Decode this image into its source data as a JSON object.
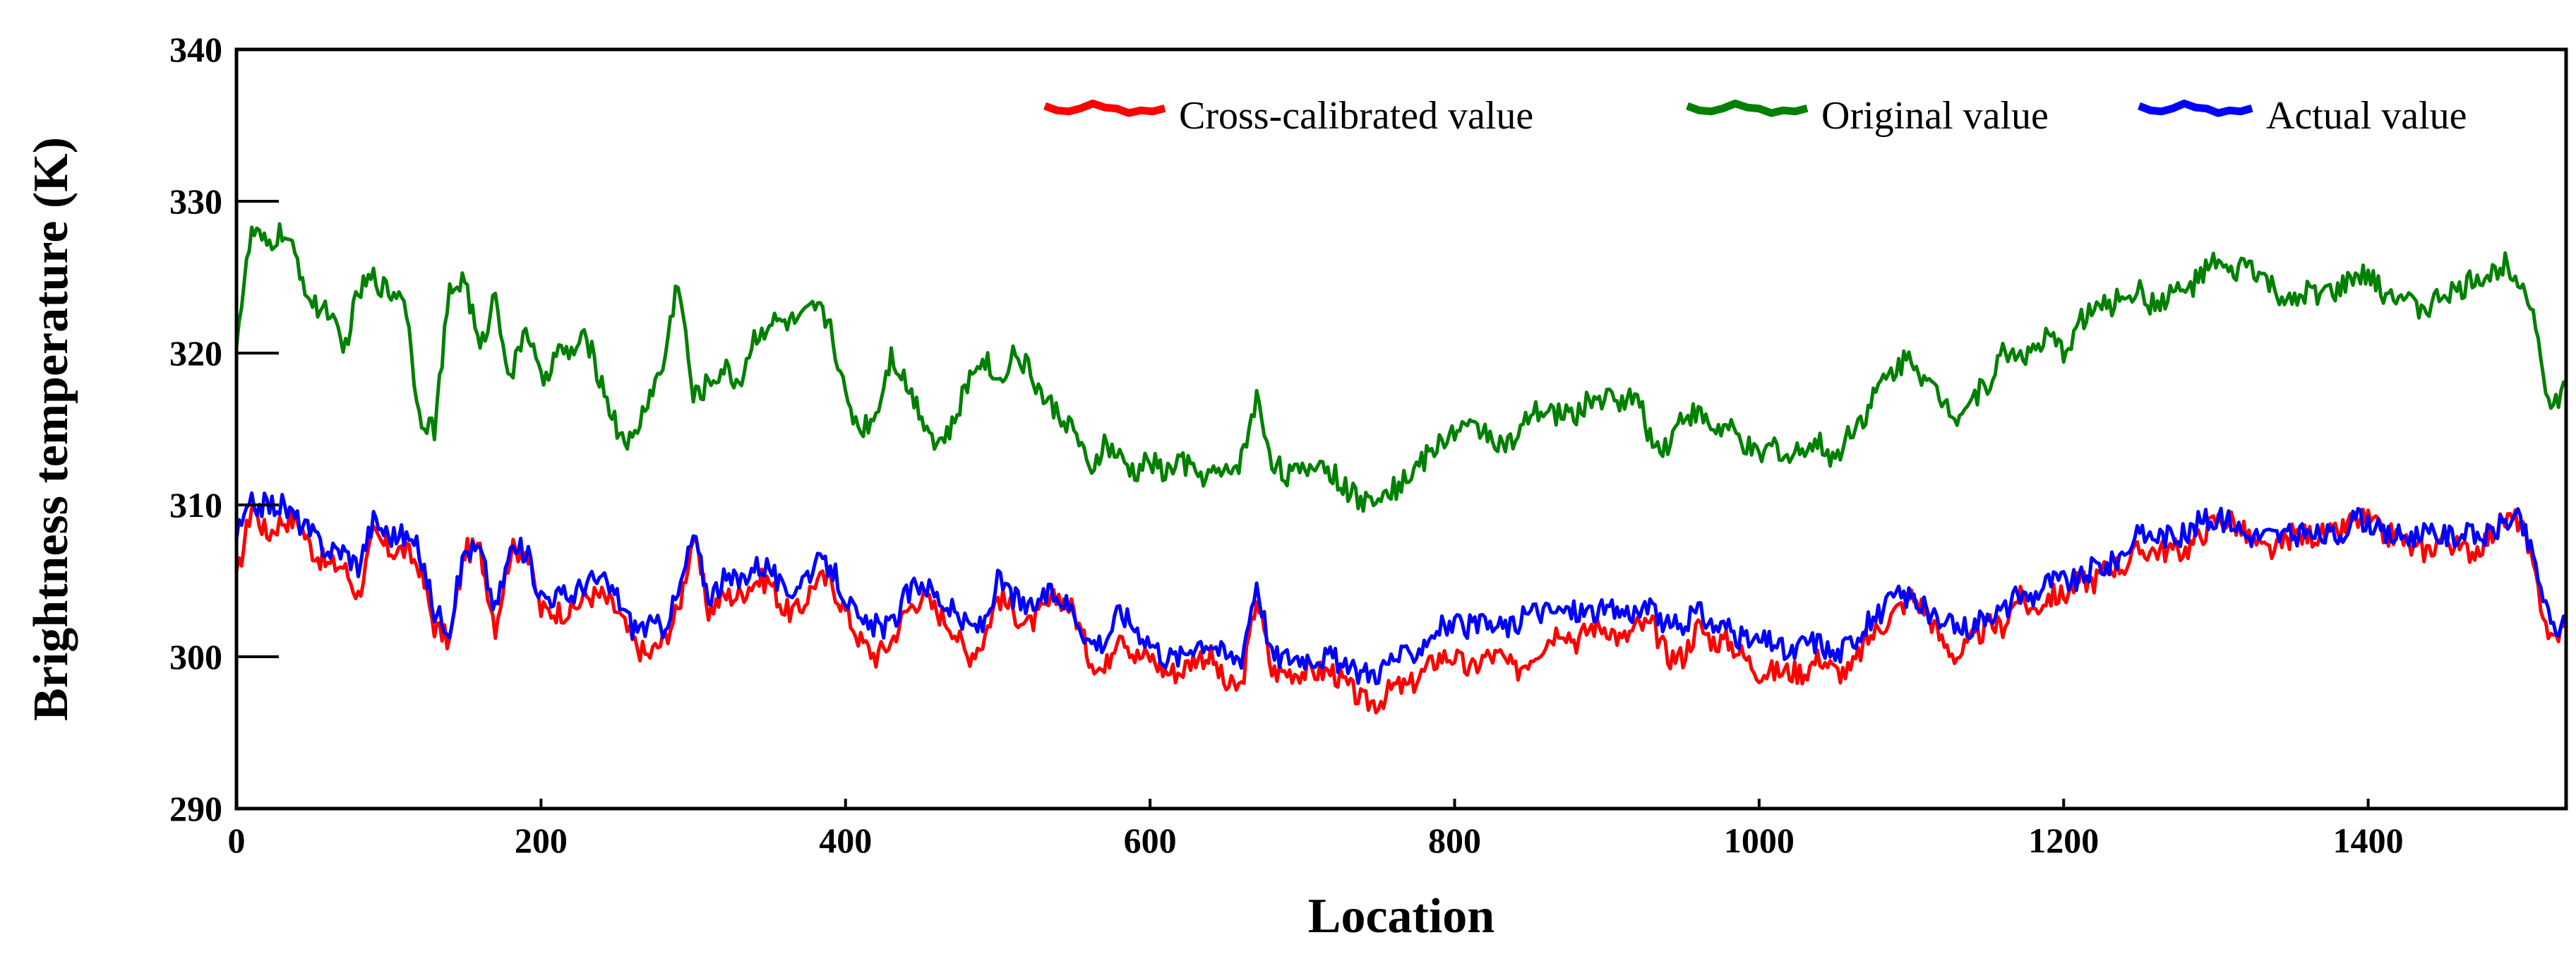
{
  "chart_data": {
    "type": "line",
    "xlabel": "Location",
    "ylabel": "Brightness temperature (K)",
    "xlim": [
      0,
      1530
    ],
    "ylim": [
      290,
      340
    ],
    "xticks": [
      0,
      200,
      400,
      600,
      800,
      1000,
      1200,
      1400
    ],
    "yticks": [
      290,
      300,
      310,
      320,
      330,
      340
    ],
    "grid": false,
    "legend": "top-right",
    "series": [
      {
        "name": "Cross-calibrated value",
        "color": "#ff0000",
        "x": [
          0,
          10,
          20,
          30,
          40,
          50,
          60,
          70,
          80,
          90,
          100,
          110,
          120,
          130,
          140,
          150,
          160,
          170,
          180,
          190,
          200,
          210,
          220,
          230,
          240,
          250,
          260,
          270,
          280,
          290,
          300,
          310,
          320,
          330,
          340,
          350,
          360,
          370,
          380,
          390,
          400,
          410,
          420,
          430,
          440,
          450,
          460,
          470,
          480,
          490,
          500,
          510,
          520,
          530,
          540,
          550,
          560,
          570,
          580,
          590,
          600,
          610,
          620,
          630,
          640,
          650,
          660,
          670,
          680,
          690,
          700,
          710,
          720,
          730,
          740,
          750,
          760,
          770,
          780,
          790,
          800,
          810,
          820,
          830,
          840,
          850,
          860,
          870,
          880,
          890,
          900,
          910,
          920,
          930,
          940,
          950,
          960,
          970,
          980,
          990,
          1000,
          1010,
          1020,
          1030,
          1040,
          1050,
          1060,
          1070,
          1080,
          1090,
          1100,
          1110,
          1120,
          1130,
          1140,
          1150,
          1160,
          1170,
          1180,
          1190,
          1200,
          1210,
          1220,
          1230,
          1240,
          1250,
          1260,
          1270,
          1280,
          1290,
          1300,
          1310,
          1320,
          1330,
          1340,
          1350,
          1360,
          1370,
          1380,
          1390,
          1400,
          1410,
          1420,
          1430,
          1440,
          1450,
          1460,
          1470,
          1480,
          1490,
          1500,
          1510,
          1520,
          1530
        ],
        "y": [
          305,
          310,
          308,
          309,
          309,
          307,
          306,
          306,
          304,
          308,
          307,
          307,
          306,
          302,
          301,
          307,
          307,
          302,
          307,
          307,
          303,
          303,
          303,
          304,
          304,
          303,
          301,
          300,
          301,
          303,
          308,
          303,
          304,
          304,
          305,
          305,
          303,
          303,
          305,
          305,
          303,
          301,
          300,
          301,
          303,
          304,
          303,
          302,
          300,
          301,
          304,
          303,
          302,
          303,
          304,
          303,
          300,
          299,
          302,
          300,
          300,
          299,
          299,
          300,
          300,
          298,
          298,
          304,
          299,
          299,
          299,
          299,
          299,
          298,
          297,
          297,
          298,
          298,
          299,
          300,
          300,
          299,
          300,
          300,
          299,
          300,
          301,
          302,
          301,
          302,
          302,
          301,
          302,
          302,
          300,
          300,
          302,
          301,
          301,
          300,
          299,
          299,
          299,
          299,
          300,
          299,
          299,
          301,
          302,
          303,
          304,
          303,
          301,
          300,
          301,
          302,
          302,
          304,
          303,
          304,
          304,
          305,
          305,
          306,
          306,
          307,
          307,
          307,
          307,
          308,
          309,
          309,
          308,
          307,
          307,
          308,
          308,
          308,
          308,
          309,
          309,
          308,
          308,
          307,
          307,
          308,
          307,
          307,
          308,
          309,
          309,
          305,
          301,
          302
        ],
        "values_note": "sampled approximation of dense trace"
      },
      {
        "name": "Original value",
        "color": "#008000",
        "x": [
          0,
          10,
          20,
          30,
          40,
          50,
          60,
          70,
          80,
          90,
          100,
          110,
          120,
          130,
          140,
          150,
          160,
          170,
          180,
          190,
          200,
          210,
          220,
          230,
          240,
          250,
          260,
          270,
          280,
          290,
          300,
          310,
          320,
          330,
          340,
          350,
          360,
          370,
          380,
          390,
          400,
          410,
          420,
          430,
          440,
          450,
          460,
          470,
          480,
          490,
          500,
          510,
          520,
          530,
          540,
          550,
          560,
          570,
          580,
          590,
          600,
          610,
          620,
          630,
          640,
          650,
          660,
          670,
          680,
          690,
          700,
          710,
          720,
          730,
          740,
          750,
          760,
          770,
          780,
          790,
          800,
          810,
          820,
          830,
          840,
          850,
          860,
          870,
          880,
          890,
          900,
          910,
          920,
          930,
          940,
          950,
          960,
          970,
          980,
          990,
          1000,
          1010,
          1020,
          1030,
          1040,
          1050,
          1060,
          1070,
          1080,
          1090,
          1100,
          1110,
          1120,
          1130,
          1140,
          1150,
          1160,
          1170,
          1180,
          1190,
          1200,
          1210,
          1220,
          1230,
          1240,
          1250,
          1260,
          1270,
          1280,
          1290,
          1300,
          1310,
          1320,
          1330,
          1340,
          1350,
          1360,
          1370,
          1380,
          1390,
          1400,
          1410,
          1420,
          1430,
          1440,
          1450,
          1460,
          1470,
          1480,
          1490,
          1500,
          1510,
          1520,
          1530
        ],
        "y": [
          321,
          328,
          327,
          328,
          326,
          323,
          323,
          320,
          324,
          325,
          324,
          324,
          316,
          315,
          324,
          325,
          320,
          324,
          318,
          322,
          318,
          320,
          320,
          321,
          318,
          315,
          314,
          317,
          319,
          325,
          317,
          318,
          319,
          318,
          321,
          322,
          322,
          322,
          323,
          322,
          317,
          315,
          316,
          320,
          318,
          316,
          314,
          315,
          318,
          320,
          318,
          320,
          319,
          317,
          316,
          315,
          312,
          314,
          313,
          312,
          313,
          312,
          313,
          312,
          312,
          312,
          313,
          317,
          313,
          312,
          312,
          313,
          312,
          311,
          310,
          311,
          311,
          312,
          313,
          314,
          315,
          315,
          315,
          314,
          314,
          316,
          316,
          316,
          316,
          317,
          317,
          317,
          317,
          314,
          314,
          316,
          316,
          315,
          315,
          314,
          313,
          314,
          313,
          314,
          314,
          313,
          315,
          316,
          318,
          319,
          320,
          318,
          317,
          316,
          317,
          318,
          320,
          320,
          320,
          321,
          320,
          322,
          323,
          323,
          324,
          324,
          323,
          324,
          324,
          325,
          326,
          325,
          326,
          325,
          324,
          323,
          324,
          324,
          324,
          325,
          325,
          324,
          324,
          323,
          323,
          324,
          324,
          325,
          325,
          326,
          325,
          322,
          316,
          318
        ],
        "values_note": "sampled approximation of dense trace"
      },
      {
        "name": "Actual value",
        "color": "#0000ff",
        "x": [
          0,
          10,
          20,
          30,
          40,
          50,
          60,
          70,
          80,
          90,
          100,
          110,
          120,
          130,
          140,
          150,
          160,
          170,
          180,
          190,
          200,
          210,
          220,
          230,
          240,
          250,
          260,
          270,
          280,
          290,
          300,
          310,
          320,
          330,
          340,
          350,
          360,
          370,
          380,
          390,
          400,
          410,
          420,
          430,
          440,
          450,
          460,
          470,
          480,
          490,
          500,
          510,
          520,
          530,
          540,
          550,
          560,
          570,
          580,
          590,
          600,
          610,
          620,
          630,
          640,
          650,
          660,
          670,
          680,
          690,
          700,
          710,
          720,
          730,
          740,
          750,
          760,
          770,
          780,
          790,
          800,
          810,
          820,
          830,
          840,
          850,
          860,
          870,
          880,
          890,
          900,
          910,
          920,
          930,
          940,
          950,
          960,
          970,
          980,
          990,
          1000,
          1010,
          1020,
          1030,
          1040,
          1050,
          1060,
          1070,
          1080,
          1090,
          1100,
          1110,
          1120,
          1130,
          1140,
          1150,
          1160,
          1170,
          1180,
          1190,
          1200,
          1210,
          1220,
          1230,
          1240,
          1250,
          1260,
          1270,
          1280,
          1290,
          1300,
          1310,
          1320,
          1330,
          1340,
          1350,
          1360,
          1370,
          1380,
          1390,
          1400,
          1410,
          1420,
          1430,
          1440,
          1450,
          1460,
          1470,
          1480,
          1490,
          1500,
          1510,
          1520,
          1530
        ],
        "y": [
          308,
          310,
          310,
          310,
          309,
          308,
          307,
          307,
          306,
          309,
          308,
          308,
          307,
          303,
          302,
          307,
          307,
          303,
          307,
          307,
          304,
          304,
          304,
          305,
          305,
          304,
          302,
          302,
          302,
          304,
          308,
          304,
          305,
          305,
          306,
          306,
          304,
          305,
          306,
          306,
          304,
          302,
          302,
          302,
          304,
          305,
          304,
          303,
          302,
          302,
          305,
          304,
          303,
          304,
          304,
          303,
          301,
          301,
          303,
          302,
          301,
          300,
          300,
          301,
          301,
          300,
          300,
          305,
          300,
          300,
          300,
          300,
          300,
          299,
          299,
          299,
          300,
          300,
          301,
          302,
          302,
          302,
          302,
          302,
          302,
          303,
          303,
          303,
          303,
          303,
          303,
          303,
          303,
          303,
          302,
          302,
          303,
          302,
          302,
          301,
          301,
          301,
          300,
          301,
          301,
          300,
          301,
          302,
          303,
          304,
          304,
          303,
          302,
          302,
          302,
          303,
          303,
          304,
          304,
          305,
          305,
          305,
          306,
          306,
          307,
          308,
          308,
          308,
          308,
          309,
          309,
          309,
          308,
          308,
          308,
          308,
          308,
          308,
          308,
          309,
          309,
          308,
          308,
          308,
          308,
          308,
          308,
          308,
          308,
          309,
          309,
          306,
          302,
          302
        ],
        "values_note": "sampled approximation of dense trace"
      }
    ]
  }
}
